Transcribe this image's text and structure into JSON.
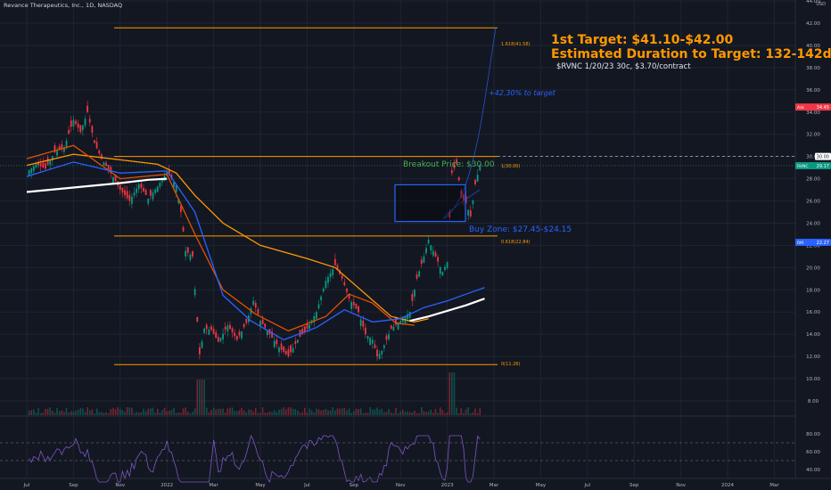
{
  "chart_title": "Revance Therapeutics, Inc., 1D, NASDAQ",
  "currency": "USD",
  "annotations": {
    "first_target": "1st Target: $41.10-$42.00",
    "duration": "Estimated Duration to Target: 132-142d",
    "option": "$RVNC 1/20/23 30c, $3.70/contract",
    "breakout": "Breakout Price: $30.00",
    "buy_zone": "Buy Zone: $27.45-$24.15",
    "pct_target": "+42.30% to target"
  },
  "fib_labels": {
    "f1618": "1.618(41.58)",
    "f1": "1(30.00)",
    "f0618": "0.618(22.84)",
    "f0": "0(11.26)"
  },
  "chart_data": {
    "type": "line",
    "title": "Revance Therapeutics, Inc., 1D, NASDAQ",
    "xlabel": "",
    "ylabel": "USD",
    "x_ticks": [
      "Jul",
      "Sep",
      "Nov",
      "2022",
      "Mar",
      "May",
      "Jul",
      "Sep",
      "Nov",
      "2023",
      "Mar",
      "May",
      "Jul",
      "Sep",
      "Nov",
      "2024",
      "Mar"
    ],
    "ylim": [
      7,
      46
    ],
    "y_ticks": [
      8.0,
      10.0,
      12.0,
      14.0,
      16.0,
      18.0,
      20.0,
      22.0,
      24.0,
      26.0,
      28.0,
      30.0,
      32.0,
      34.0,
      36.0,
      38.0,
      40.0,
      42.0,
      44.0
    ],
    "price_labels": [
      {
        "name": "Ask",
        "value": 34.45,
        "color": "#f23645"
      },
      {
        "name": "",
        "value": 30.0,
        "color": "#ffffff"
      },
      {
        "name": "RVNC",
        "value": 29.17,
        "color": "#089981"
      },
      {
        "name": "RM",
        "value": 22.27,
        "color": "#2962ff"
      }
    ],
    "fib_levels": [
      {
        "ratio": 1.618,
        "value": 41.58
      },
      {
        "ratio": 1,
        "value": 30.0
      },
      {
        "ratio": 0.618,
        "value": 22.84
      },
      {
        "ratio": 0,
        "value": 11.26
      }
    ],
    "buy_zone": [
      24.15,
      27.45
    ],
    "breakout_price": 30.0,
    "price_series": [
      {
        "x": 0,
        "y": 28.6
      },
      {
        "x": 0.2,
        "y": 29.3
      },
      {
        "x": 0.4,
        "y": 28.9
      },
      {
        "x": 0.6,
        "y": 30.4
      },
      {
        "x": 0.8,
        "y": 30.8
      },
      {
        "x": 1.0,
        "y": 33.3
      },
      {
        "x": 1.15,
        "y": 32.2
      },
      {
        "x": 1.3,
        "y": 34.0
      },
      {
        "x": 1.45,
        "y": 31.2
      },
      {
        "x": 1.6,
        "y": 29.8
      },
      {
        "x": 1.8,
        "y": 28.5
      },
      {
        "x": 2.0,
        "y": 27.0
      },
      {
        "x": 2.2,
        "y": 26.0
      },
      {
        "x": 2.4,
        "y": 27.5
      },
      {
        "x": 2.6,
        "y": 26.2
      },
      {
        "x": 2.8,
        "y": 27.3
      },
      {
        "x": 3.0,
        "y": 28.6
      },
      {
        "x": 3.2,
        "y": 27.4
      },
      {
        "x": 3.3,
        "y": 25.0
      },
      {
        "x": 3.4,
        "y": 21.5
      },
      {
        "x": 3.55,
        "y": 21.0
      },
      {
        "x": 3.7,
        "y": 12.2
      },
      {
        "x": 3.8,
        "y": 14.5
      },
      {
        "x": 3.95,
        "y": 14.4
      },
      {
        "x": 4.1,
        "y": 13.3
      },
      {
        "x": 4.3,
        "y": 14.8
      },
      {
        "x": 4.5,
        "y": 13.5
      },
      {
        "x": 4.7,
        "y": 15.0
      },
      {
        "x": 4.85,
        "y": 17.0
      },
      {
        "x": 5.0,
        "y": 15.2
      },
      {
        "x": 5.2,
        "y": 14.0
      },
      {
        "x": 5.4,
        "y": 12.8
      },
      {
        "x": 5.6,
        "y": 12.0
      },
      {
        "x": 5.8,
        "y": 13.5
      },
      {
        "x": 6.0,
        "y": 14.5
      },
      {
        "x": 6.2,
        "y": 16.0
      },
      {
        "x": 6.4,
        "y": 18.8
      },
      {
        "x": 6.6,
        "y": 20.2
      },
      {
        "x": 6.75,
        "y": 19.0
      },
      {
        "x": 6.9,
        "y": 17.2
      },
      {
        "x": 7.1,
        "y": 16.0
      },
      {
        "x": 7.25,
        "y": 14.0
      },
      {
        "x": 7.4,
        "y": 13.5
      },
      {
        "x": 7.5,
        "y": 12.0
      },
      {
        "x": 7.6,
        "y": 12.5
      },
      {
        "x": 7.8,
        "y": 14.5
      },
      {
        "x": 8.0,
        "y": 15.2
      },
      {
        "x": 8.2,
        "y": 16.0
      },
      {
        "x": 8.35,
        "y": 19.0
      },
      {
        "x": 8.5,
        "y": 21.0
      },
      {
        "x": 8.6,
        "y": 22.5
      },
      {
        "x": 8.75,
        "y": 21.0
      },
      {
        "x": 8.9,
        "y": 19.6
      },
      {
        "x": 9.0,
        "y": 20.5
      },
      {
        "x": 9.1,
        "y": 28.5
      },
      {
        "x": 9.2,
        "y": 29.4
      },
      {
        "x": 9.3,
        "y": 26.3
      },
      {
        "x": 9.4,
        "y": 25.8
      },
      {
        "x": 9.5,
        "y": 24.6
      },
      {
        "x": 9.6,
        "y": 27.5
      },
      {
        "x": 9.7,
        "y": 29.2
      }
    ],
    "series": [
      {
        "name": "",
        "color": "#ff9800",
        "values": [
          {
            "x": 0,
            "y": 29.2
          },
          {
            "x": 1.0,
            "y": 30.2
          },
          {
            "x": 2.0,
            "y": 29.7
          },
          {
            "x": 2.8,
            "y": 29.3
          },
          {
            "x": 3.2,
            "y": 28.5
          },
          {
            "x": 3.6,
            "y": 26.5
          },
          {
            "x": 4.2,
            "y": 24.0
          },
          {
            "x": 5.0,
            "y": 22.0
          },
          {
            "x": 6.0,
            "y": 20.8
          },
          {
            "x": 6.6,
            "y": 20.0
          },
          {
            "x": 7.2,
            "y": 17.8
          },
          {
            "x": 7.8,
            "y": 15.6
          },
          {
            "x": 8.3,
            "y": 15.1
          },
          {
            "x": 8.6,
            "y": 15.4
          }
        ]
      },
      {
        "name": "",
        "color": "#e65100",
        "values": [
          {
            "x": 0,
            "y": 29.8
          },
          {
            "x": 1.0,
            "y": 31.0
          },
          {
            "x": 2.0,
            "y": 28.0
          },
          {
            "x": 3.0,
            "y": 28.4
          },
          {
            "x": 3.6,
            "y": 23.0
          },
          {
            "x": 4.2,
            "y": 18.0
          },
          {
            "x": 4.9,
            "y": 15.8
          },
          {
            "x": 5.6,
            "y": 14.3
          },
          {
            "x": 6.4,
            "y": 15.6
          },
          {
            "x": 6.9,
            "y": 17.6
          },
          {
            "x": 7.4,
            "y": 16.8
          },
          {
            "x": 7.9,
            "y": 15.0
          },
          {
            "x": 8.3,
            "y": 14.8
          }
        ]
      },
      {
        "name": "",
        "color": "#2962ff",
        "values": [
          {
            "x": 0,
            "y": 28.2
          },
          {
            "x": 1.0,
            "y": 29.5
          },
          {
            "x": 2.0,
            "y": 28.5
          },
          {
            "x": 3.0,
            "y": 28.7
          },
          {
            "x": 3.6,
            "y": 25.0
          },
          {
            "x": 4.2,
            "y": 17.5
          },
          {
            "x": 4.8,
            "y": 15.2
          },
          {
            "x": 5.5,
            "y": 13.5
          },
          {
            "x": 6.2,
            "y": 14.6
          },
          {
            "x": 6.8,
            "y": 16.2
          },
          {
            "x": 7.4,
            "y": 15.1
          },
          {
            "x": 8.0,
            "y": 15.4
          },
          {
            "x": 8.5,
            "y": 16.4
          },
          {
            "x": 9.0,
            "y": 17.0
          },
          {
            "x": 9.4,
            "y": 17.6
          },
          {
            "x": 9.8,
            "y": 18.2
          }
        ]
      },
      {
        "name": "",
        "color": "#ffffff",
        "values": [
          {
            "x": 0,
            "y": 26.8
          },
          {
            "x": 1.0,
            "y": 27.2
          },
          {
            "x": 2.0,
            "y": 27.6
          },
          {
            "x": 2.6,
            "y": 27.9
          },
          {
            "x": 3.0,
            "y": 28.0
          }
        ]
      },
      {
        "name": "",
        "color": "#ffffff",
        "values": [
          {
            "x": 8.2,
            "y": 15.2
          },
          {
            "x": 8.6,
            "y": 15.6
          },
          {
            "x": 9.0,
            "y": 16.1
          },
          {
            "x": 9.4,
            "y": 16.6
          },
          {
            "x": 9.8,
            "y": 17.2
          }
        ]
      }
    ],
    "rsi": {
      "lines": [
        30,
        50,
        70
      ],
      "ylim": [
        20,
        90
      ],
      "y_ticks": [
        80.0,
        60.0,
        40.0
      ]
    }
  },
  "colors": {
    "background": "#131722",
    "grid": "#1f2430",
    "fib": "#ff9800",
    "up": "#089981",
    "down": "#f23645",
    "buy_zone": "#2962ff",
    "rsi": "#7e57c2",
    "projection": "#2962ff"
  }
}
